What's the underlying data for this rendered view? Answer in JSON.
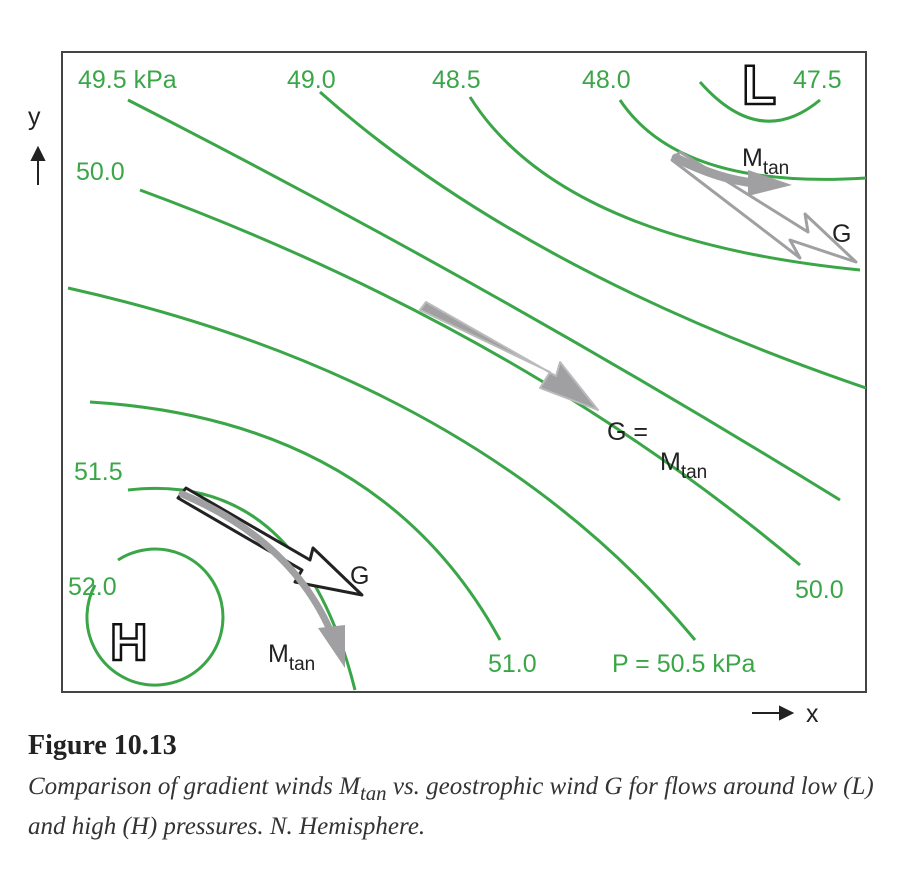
{
  "axes": {
    "y": "y",
    "x": "x"
  },
  "isobars": {
    "top": [
      "49.5 kPa",
      "49.0",
      "48.5",
      "48.0",
      "47.5"
    ],
    "left_50": "50.0",
    "right_50": "50.0",
    "p505": "P = 50.5 kPa",
    "p510": "51.0",
    "p515": "51.5",
    "p520": "52.0"
  },
  "centers": {
    "low": "L",
    "high": "H"
  },
  "arrows": {
    "g": "G",
    "eq_g": "G =",
    "m": "M",
    "tan": "tan"
  },
  "colors": {
    "isobar": "#3aa648",
    "gradient_wind": "#a0a0a2",
    "geostrophic_high": "#222222"
  },
  "caption": {
    "title": "Figure 10.13",
    "text_a": "Comparison of gradient winds M",
    "text_sub": "tan",
    "text_b": " vs. geostrophic wind G for flows around low (L) and high (H) pressures. N. Hemisphere."
  }
}
